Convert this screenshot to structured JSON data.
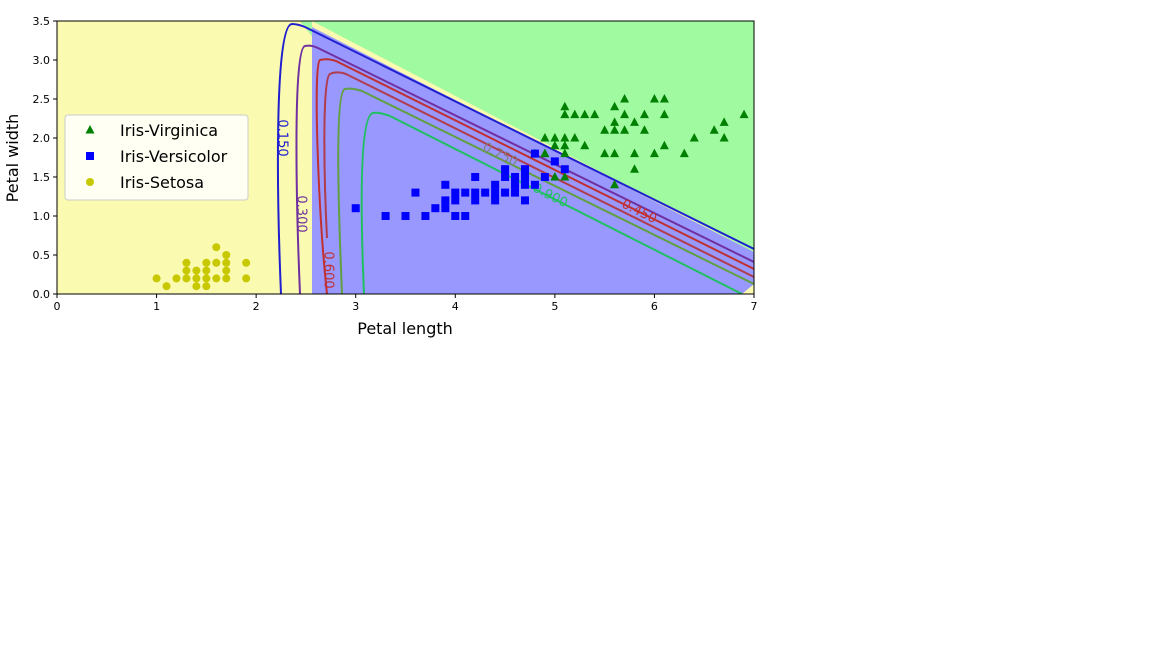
{
  "chart_data": {
    "type": "scatter",
    "xlabel": "Petal length",
    "ylabel": "Petal width",
    "xlim": [
      0,
      7
    ],
    "ylim": [
      0,
      3.5
    ],
    "x_ticks": [
      "0",
      "1",
      "2",
      "3",
      "4",
      "5",
      "6",
      "7"
    ],
    "y_ticks": [
      "0.0",
      "0.5",
      "1.0",
      "1.5",
      "2.0",
      "2.5",
      "3.0",
      "3.5"
    ],
    "legend_position": "center-left",
    "grid": false,
    "regions": [
      {
        "name": "Iris-Setosa",
        "color": "#fafab0"
      },
      {
        "name": "Iris-Versicolor",
        "color": "#9898ff"
      },
      {
        "name": "Iris-Virginica",
        "color": "#a0faa0"
      }
    ],
    "contour_labels": [
      "0.150",
      "0.300",
      "0.450",
      "0.600",
      "0.750",
      "0.900"
    ],
    "series": [
      {
        "name": "Iris-Virginica",
        "marker": "triangle",
        "color": "#008000",
        "points": [
          [
            5.1,
            2.4
          ],
          [
            5.1,
            2.3
          ],
          [
            5.2,
            2.3
          ],
          [
            5.3,
            2.3
          ],
          [
            5.4,
            2.3
          ],
          [
            5.6,
            2.4
          ],
          [
            5.7,
            2.5
          ],
          [
            5.6,
            2.2
          ],
          [
            5.7,
            2.3
          ],
          [
            5.8,
            2.2
          ],
          [
            5.9,
            2.3
          ],
          [
            6.0,
            2.5
          ],
          [
            6.1,
            2.5
          ],
          [
            6.1,
            2.3
          ],
          [
            6.9,
            2.3
          ],
          [
            5.0,
            2.0
          ],
          [
            5.1,
            2.0
          ],
          [
            5.2,
            2.0
          ],
          [
            5.5,
            2.1
          ],
          [
            5.6,
            2.1
          ],
          [
            5.7,
            2.1
          ],
          [
            5.9,
            2.1
          ],
          [
            6.7,
            2.2
          ],
          [
            6.6,
            2.1
          ],
          [
            6.7,
            2.0
          ],
          [
            6.4,
            2.0
          ],
          [
            6.3,
            1.8
          ],
          [
            6.0,
            1.8
          ],
          [
            6.1,
            1.9
          ],
          [
            5.8,
            1.8
          ],
          [
            5.6,
            1.8
          ],
          [
            5.5,
            1.8
          ],
          [
            5.3,
            1.9
          ],
          [
            5.1,
            1.9
          ],
          [
            5.0,
            1.9
          ],
          [
            4.9,
            2.0
          ],
          [
            4.8,
            1.8
          ],
          [
            4.9,
            1.8
          ],
          [
            5.1,
            1.8
          ],
          [
            5.0,
            1.5
          ],
          [
            5.1,
            1.5
          ],
          [
            5.8,
            1.6
          ],
          [
            5.6,
            1.4
          ],
          [
            4.9,
            1.8
          ]
        ]
      },
      {
        "name": "Iris-Versicolor",
        "marker": "square",
        "color": "#0000ff",
        "points": [
          [
            3.0,
            1.1
          ],
          [
            3.3,
            1.0
          ],
          [
            3.5,
            1.0
          ],
          [
            3.6,
            1.3
          ],
          [
            3.7,
            1.0
          ],
          [
            3.8,
            1.1
          ],
          [
            3.9,
            1.1
          ],
          [
            3.9,
            1.2
          ],
          [
            3.9,
            1.4
          ],
          [
            4.0,
            1.0
          ],
          [
            4.0,
            1.2
          ],
          [
            4.0,
            1.3
          ],
          [
            4.1,
            1.0
          ],
          [
            4.1,
            1.3
          ],
          [
            4.2,
            1.2
          ],
          [
            4.2,
            1.3
          ],
          [
            4.2,
            1.5
          ],
          [
            4.3,
            1.3
          ],
          [
            4.4,
            1.2
          ],
          [
            4.4,
            1.3
          ],
          [
            4.4,
            1.4
          ],
          [
            4.5,
            1.3
          ],
          [
            4.5,
            1.5
          ],
          [
            4.5,
            1.6
          ],
          [
            4.6,
            1.3
          ],
          [
            4.6,
            1.4
          ],
          [
            4.6,
            1.5
          ],
          [
            4.7,
            1.2
          ],
          [
            4.7,
            1.4
          ],
          [
            4.7,
            1.5
          ],
          [
            4.7,
            1.6
          ],
          [
            4.8,
            1.4
          ],
          [
            4.8,
            1.8
          ],
          [
            4.9,
            1.5
          ],
          [
            5.0,
            1.7
          ],
          [
            5.1,
            1.6
          ]
        ]
      },
      {
        "name": "Iris-Setosa",
        "marker": "circle",
        "color": "#c8c800",
        "points": [
          [
            1.0,
            0.2
          ],
          [
            1.1,
            0.1
          ],
          [
            1.2,
            0.2
          ],
          [
            1.3,
            0.2
          ],
          [
            1.3,
            0.3
          ],
          [
            1.3,
            0.4
          ],
          [
            1.4,
            0.1
          ],
          [
            1.4,
            0.2
          ],
          [
            1.4,
            0.3
          ],
          [
            1.5,
            0.1
          ],
          [
            1.5,
            0.2
          ],
          [
            1.5,
            0.3
          ],
          [
            1.5,
            0.4
          ],
          [
            1.6,
            0.2
          ],
          [
            1.6,
            0.4
          ],
          [
            1.6,
            0.6
          ],
          [
            1.7,
            0.2
          ],
          [
            1.7,
            0.3
          ],
          [
            1.7,
            0.4
          ],
          [
            1.7,
            0.5
          ],
          [
            1.9,
            0.2
          ],
          [
            1.9,
            0.4
          ]
        ]
      }
    ]
  }
}
